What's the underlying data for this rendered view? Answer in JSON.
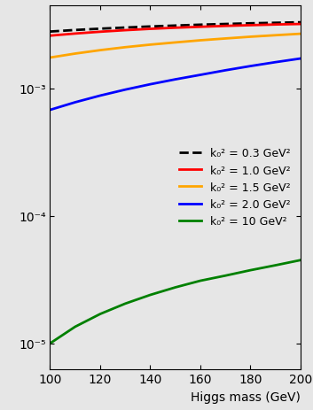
{
  "chart_data": {
    "type": "line",
    "x_label": "Higgs mass (GeV)",
    "x": [
      100,
      110,
      120,
      130,
      140,
      150,
      160,
      170,
      180,
      190,
      200
    ],
    "series": [
      {
        "name": "k₀² = 0.3 GeV²",
        "color": "#000000",
        "line_style": "dashed",
        "values": [
          0.0028,
          0.00288,
          0.00295,
          0.00301,
          0.00307,
          0.00312,
          0.00317,
          0.00321,
          0.00325,
          0.00328,
          0.00331
        ]
      },
      {
        "name": "k₀² = 1.0 GeV²",
        "color": "#ff0000",
        "line_style": "solid",
        "values": [
          0.0026,
          0.0027,
          0.00279,
          0.00287,
          0.00294,
          0.003,
          0.00305,
          0.0031,
          0.00314,
          0.00318,
          0.00321
        ]
      },
      {
        "name": "k₀² = 1.5 GeV²",
        "color": "#ffa500",
        "line_style": "solid",
        "values": [
          0.00175,
          0.00188,
          0.002,
          0.00211,
          0.00221,
          0.0023,
          0.00239,
          0.00247,
          0.00255,
          0.00262,
          0.00269
        ]
      },
      {
        "name": "k₀² = 2.0 GeV²",
        "color": "#0000ff",
        "line_style": "solid",
        "values": [
          0.00068,
          0.00078,
          0.00088,
          0.00098,
          0.00108,
          0.00118,
          0.00128,
          0.00139,
          0.0015,
          0.00161,
          0.00172
        ]
      },
      {
        "name": "k₀² = 10 GeV²",
        "color": "#008000",
        "line_style": "solid",
        "values": [
          1e-05,
          1.35e-05,
          1.7e-05,
          2.05e-05,
          2.4e-05,
          2.75e-05,
          3.1e-05,
          3.4e-05,
          3.75e-05,
          4.1e-05,
          4.5e-05
        ]
      }
    ],
    "log": "y",
    "xlim": [
      100,
      200
    ],
    "xticks": [
      100,
      120,
      140,
      160,
      180,
      200
    ],
    "ylim": [
      6.3e-06,
      0.0045
    ],
    "yticks": [
      {
        "value": 1e-05,
        "label": "10⁻⁵"
      },
      {
        "value": 0.0001,
        "label": "10⁻⁴"
      },
      {
        "value": 0.001,
        "label": "10⁻³"
      }
    ],
    "legend": "center right",
    "grid": false
  }
}
